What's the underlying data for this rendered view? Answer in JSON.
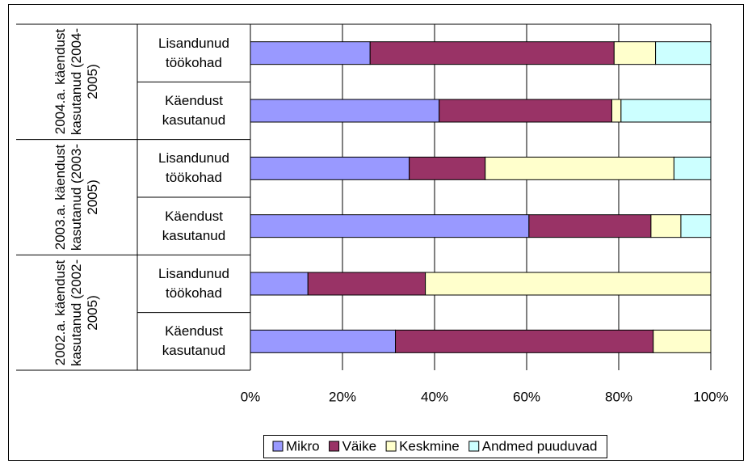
{
  "chart_data": {
    "type": "stacked_hbar",
    "group_labels": [
      "2004.a. käendust kasutanud (2004-2005)",
      "2003.a. käendust kasutanud (2003-2005)",
      "2002.a. käendust kasutanud (2002-2005)"
    ],
    "categories": [
      "Lisandunud töökohad",
      "Käendust kasutanud",
      "Lisandunud töökohad",
      "Käendust kasutanud",
      "Lisandunud töökohad",
      "Käendust kasutanud"
    ],
    "series": [
      {
        "name": "Mikro",
        "color": "#9999ff",
        "values": [
          26,
          41,
          34.5,
          60.5,
          12.5,
          31.5
        ]
      },
      {
        "name": "Väike",
        "color": "#993366",
        "values": [
          53,
          37.5,
          16.5,
          26.5,
          25.5,
          56
        ]
      },
      {
        "name": "Keskmine",
        "color": "#ffffcc",
        "values": [
          9,
          2,
          41,
          6.5,
          62,
          12.5
        ]
      },
      {
        "name": "Andmed puuduvad",
        "color": "#ccffff",
        "values": [
          12,
          19.5,
          8,
          6.5,
          0,
          0
        ]
      }
    ],
    "xlim": [
      0,
      100
    ],
    "xticks": [
      {
        "value": 0,
        "label": "0%"
      },
      {
        "value": 20,
        "label": "20%"
      },
      {
        "value": 40,
        "label": "40%"
      },
      {
        "value": 60,
        "label": "60%"
      },
      {
        "value": 80,
        "label": "80%"
      },
      {
        "value": 100,
        "label": "100%"
      }
    ],
    "grid": true,
    "legend": "bottom"
  }
}
